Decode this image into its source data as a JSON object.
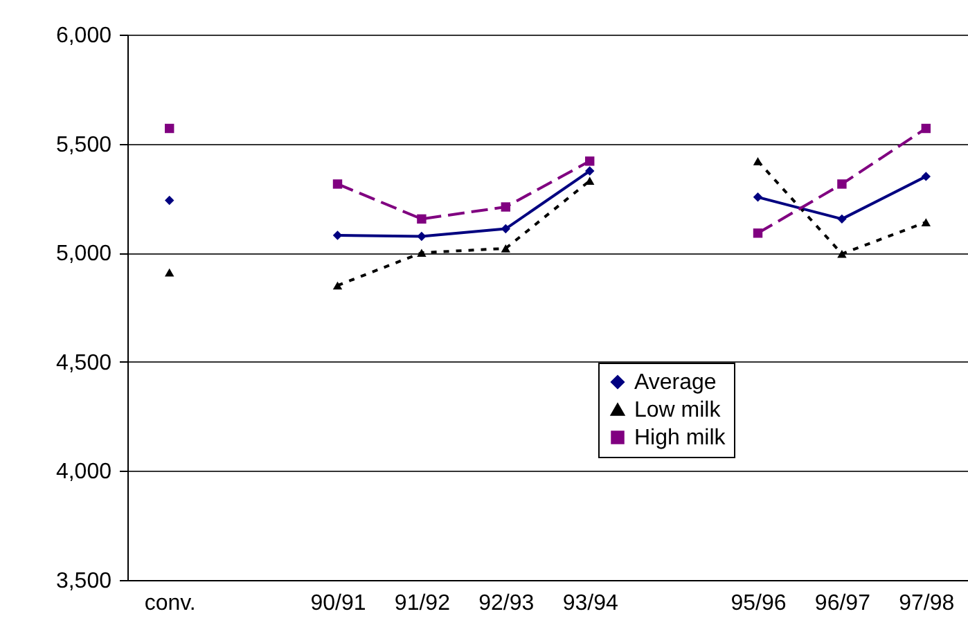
{
  "chart_data": {
    "type": "line",
    "categories": [
      "conv.",
      null,
      "90/91",
      "91/92",
      "92/93",
      "93/94",
      null,
      "95/96",
      "96/97",
      "97/98"
    ],
    "series": [
      {
        "name": "Average",
        "color": "#000080",
        "marker": "diamond",
        "line_style": "solid",
        "values": [
          5240,
          null,
          5080,
          5075,
          5110,
          5375,
          null,
          5255,
          5155,
          5350
        ]
      },
      {
        "name": "Low milk",
        "color": "#000000",
        "marker": "triangle",
        "line_style": "dotted",
        "values": [
          4910,
          null,
          4850,
          5000,
          5020,
          5330,
          null,
          5420,
          4995,
          5140
        ]
      },
      {
        "name": "High milk",
        "color": "#800080",
        "marker": "square",
        "line_style": "dashed",
        "values": [
          5570,
          null,
          5315,
          5155,
          5210,
          5420,
          null,
          5090,
          5315,
          5570
        ]
      }
    ],
    "ylim": [
      3500,
      6000
    ],
    "yticks": [
      {
        "value": 3500,
        "label": "3,500"
      },
      {
        "value": 4000,
        "label": "4,000"
      },
      {
        "value": 4500,
        "label": "4,500"
      },
      {
        "value": 5000,
        "label": "5,000"
      },
      {
        "value": 5500,
        "label": "5,500"
      },
      {
        "value": 6000,
        "label": "6,000"
      }
    ],
    "grid": "y",
    "legend": "bottom right"
  }
}
